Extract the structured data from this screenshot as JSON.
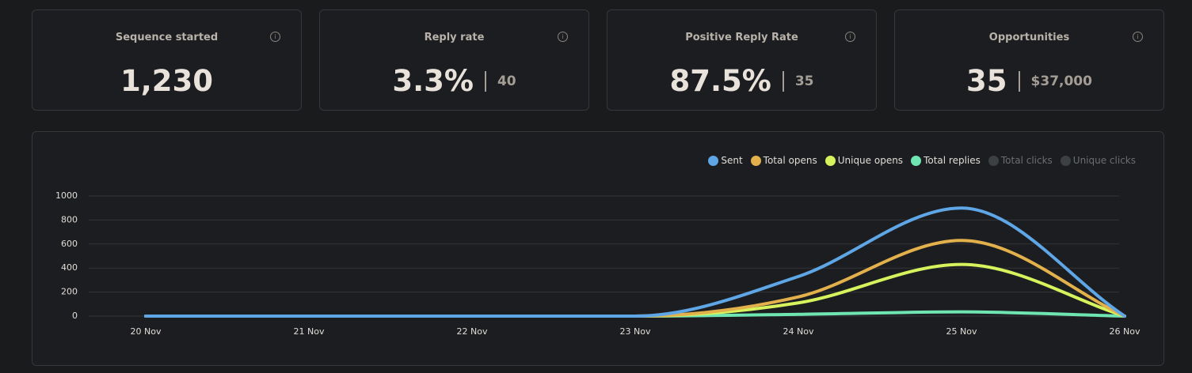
{
  "cards": [
    {
      "title": "Sequence started",
      "value": "1,230"
    },
    {
      "title": "Reply rate",
      "value": "3.3%",
      "secondary": "40"
    },
    {
      "title": "Positive Reply Rate",
      "value": "87.5%",
      "secondary": "35"
    },
    {
      "title": "Opportunities",
      "value": "35",
      "secondary": "$37,000"
    }
  ],
  "chart_data": {
    "type": "line",
    "categories": [
      "20 Nov",
      "21 Nov",
      "22 Nov",
      "23 Nov",
      "24 Nov",
      "25 Nov",
      "26 Nov"
    ],
    "series": [
      {
        "name": "Sent",
        "color": "#5ea6e6",
        "values": [
          0,
          0,
          0,
          0,
          330,
          900,
          0
        ]
      },
      {
        "name": "Total opens",
        "color": "#e3b14c",
        "values": [
          0,
          0,
          0,
          0,
          160,
          630,
          0
        ]
      },
      {
        "name": "Unique opens",
        "color": "#d6f25c",
        "values": [
          0,
          0,
          0,
          0,
          110,
          430,
          0
        ]
      },
      {
        "name": "Total replies",
        "color": "#6fe6b2",
        "values": [
          0,
          0,
          0,
          0,
          15,
          35,
          0
        ]
      },
      {
        "name": "Total clicks",
        "color": "#3c4042",
        "hidden": true
      },
      {
        "name": "Unique clicks",
        "color": "#3c4042",
        "hidden": true
      }
    ],
    "ylim": [
      0,
      1000
    ],
    "yticks": [
      0,
      200,
      400,
      600,
      800,
      1000
    ],
    "grid": true,
    "legend": "top-right"
  }
}
